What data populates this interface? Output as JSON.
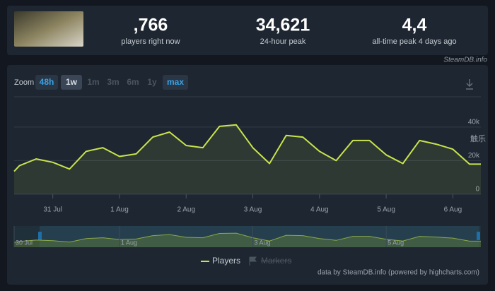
{
  "header": {
    "stats": [
      {
        "value": ",766",
        "label": "players right now"
      },
      {
        "value": "34,621",
        "label": "24-hour peak"
      },
      {
        "value": "4,4",
        "label": "all-time peak 4 days ago"
      }
    ],
    "source": "SteamDB.info"
  },
  "zoom": {
    "label": "Zoom",
    "buttons": [
      "48h",
      "1w",
      "1m",
      "3m",
      "6m",
      "1y",
      "max"
    ]
  },
  "chart_data": {
    "type": "line",
    "x": [
      0.42,
      0.5,
      0.75,
      1.0,
      1.25,
      1.5,
      1.75,
      2.0,
      2.25,
      2.5,
      2.75,
      3.0,
      3.25,
      3.5,
      3.75,
      4.0,
      4.25,
      4.5,
      4.75,
      5.0,
      5.25,
      5.5,
      5.75,
      6.0,
      6.25,
      6.5,
      6.75,
      7.0,
      7.25,
      7.42
    ],
    "series": [
      {
        "name": "Players",
        "color": "#c9e44b",
        "values": [
          13600,
          17000,
          21000,
          19000,
          15000,
          25500,
          27700,
          22500,
          24000,
          34000,
          37000,
          29000,
          27700,
          40400,
          41300,
          27700,
          18300,
          35000,
          34000,
          25500,
          20000,
          32000,
          32000,
          23400,
          18300,
          32000,
          29800,
          26800,
          17900,
          17900
        ]
      }
    ],
    "xlim": [
      0.42,
      7.42
    ],
    "xticks": [
      {
        "value": 1,
        "label": "31 Jul"
      },
      {
        "value": 2,
        "label": "1 Aug"
      },
      {
        "value": 3,
        "label": "2 Aug"
      },
      {
        "value": 4,
        "label": "3 Aug"
      },
      {
        "value": 5,
        "label": "4 Aug"
      },
      {
        "value": 6,
        "label": "5 Aug"
      },
      {
        "value": 7,
        "label": "6 Aug"
      }
    ],
    "ylim": [
      0,
      58000
    ],
    "yticks": [
      0,
      {
        "value": 20000,
        "label": "20k"
      },
      {
        "value": 40000,
        "label": "40k"
      }
    ],
    "grid": true,
    "navigator_ticks": [
      {
        "value": 0.42,
        "label": "30 Jul"
      },
      {
        "value": 2,
        "label": "1 Aug"
      },
      {
        "value": 4,
        "label": "3 Aug"
      },
      {
        "value": 6,
        "label": "5 Aug"
      }
    ],
    "disabled_legend": "Markers",
    "credits": "data by SteamDB.info (powered by highcharts.com)"
  },
  "watermark": "触乐"
}
